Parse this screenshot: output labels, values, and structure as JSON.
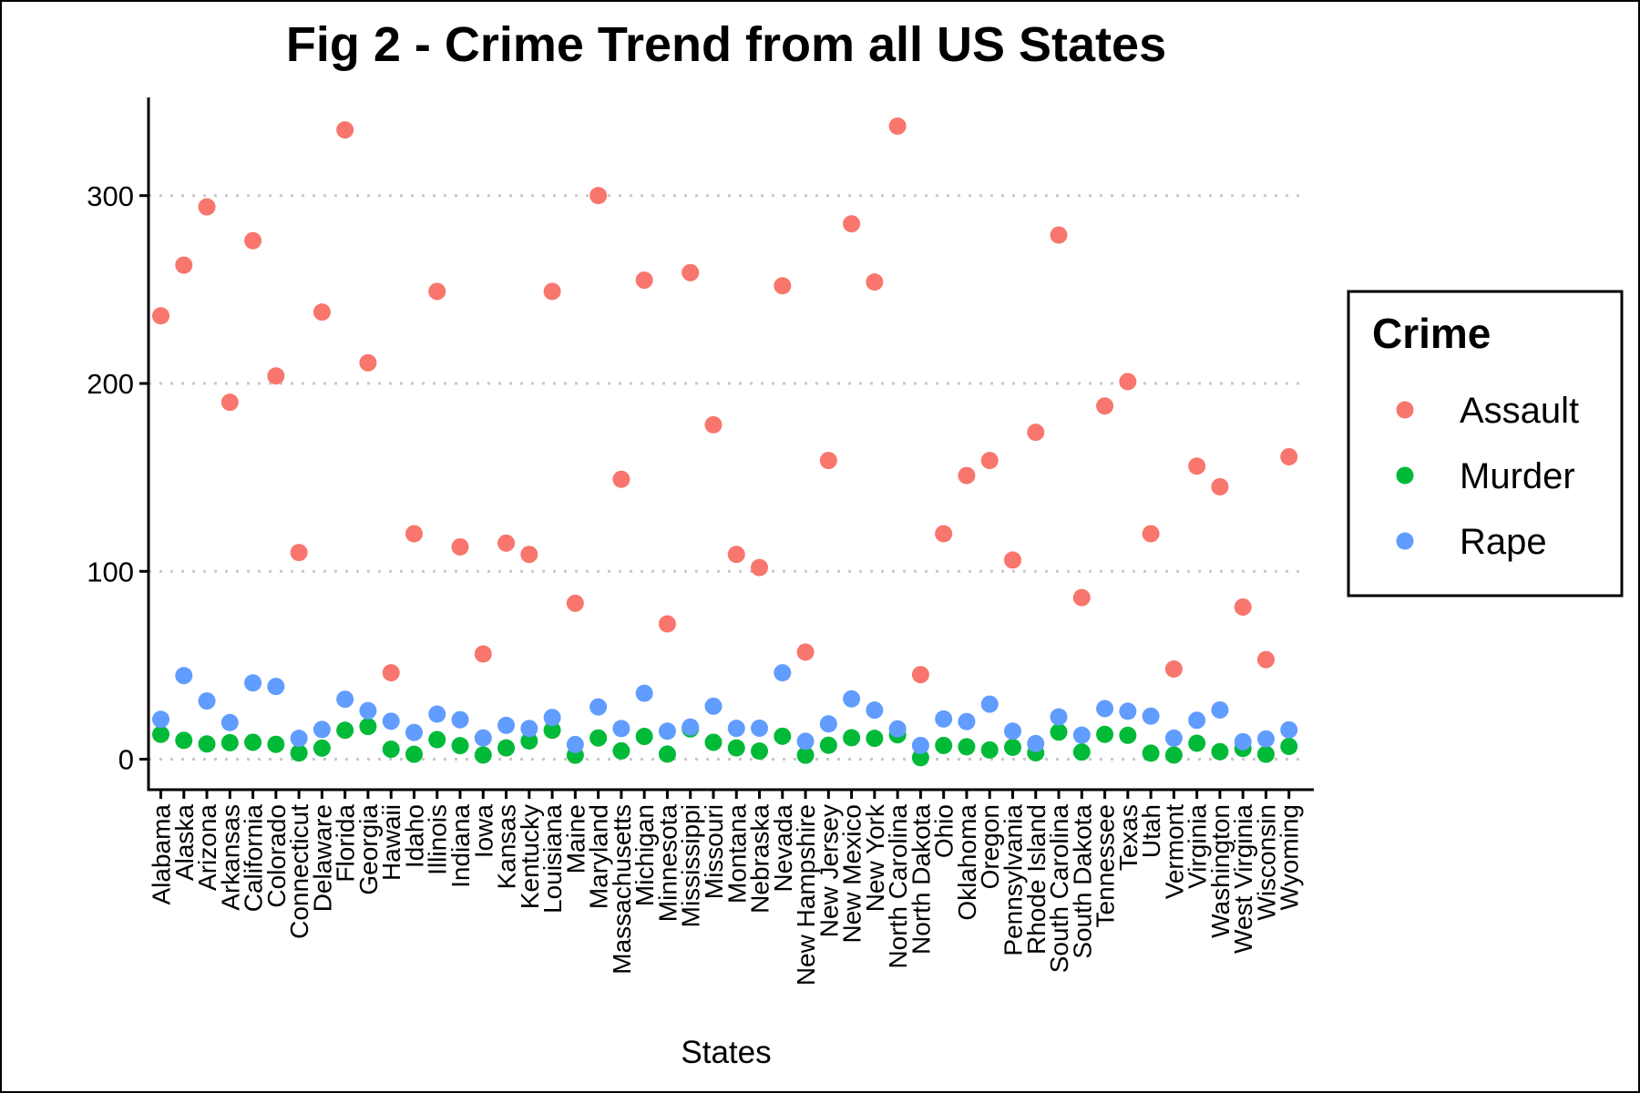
{
  "chart_data": {
    "type": "scatter",
    "title": "Fig 2 - Crime Trend from all US States",
    "xlabel": "States",
    "ylabel": "",
    "ylim": [
      -15,
      355
    ],
    "yticks": [
      0,
      100,
      200,
      300
    ],
    "grid": "horizontal dotted at y ticks",
    "legend": {
      "title": "Crime",
      "position": "right"
    },
    "categories": [
      "Alabama",
      "Alaska",
      "Arizona",
      "Arkansas",
      "California",
      "Colorado",
      "Connecticut",
      "Delaware",
      "Florida",
      "Georgia",
      "Hawaii",
      "Idaho",
      "Illinois",
      "Indiana",
      "Iowa",
      "Kansas",
      "Kentucky",
      "Louisiana",
      "Maine",
      "Maryland",
      "Massachusetts",
      "Michigan",
      "Minnesota",
      "Mississippi",
      "Missouri",
      "Montana",
      "Nebraska",
      "Nevada",
      "New Hampshire",
      "New Jersey",
      "New Mexico",
      "New York",
      "North Carolina",
      "North Dakota",
      "Ohio",
      "Oklahoma",
      "Oregon",
      "Pennsylvania",
      "Rhode Island",
      "South Carolina",
      "South Dakota",
      "Tennessee",
      "Texas",
      "Utah",
      "Vermont",
      "Virginia",
      "Washington",
      "West Virginia",
      "Wisconsin",
      "Wyoming"
    ],
    "series": [
      {
        "name": "Assault",
        "color": "#F8766D",
        "values": [
          236,
          263,
          294,
          190,
          276,
          204,
          110,
          238,
          335,
          211,
          46,
          120,
          249,
          113,
          56,
          115,
          109,
          249,
          83,
          300,
          149,
          255,
          72,
          259,
          178,
          109,
          102,
          252,
          57,
          159,
          285,
          254,
          337,
          45,
          120,
          151,
          159,
          106,
          174,
          279,
          86,
          188,
          201,
          120,
          48,
          156,
          145,
          81,
          53,
          161
        ]
      },
      {
        "name": "Murder",
        "color": "#00BA38",
        "values": [
          13.2,
          10,
          8.1,
          8.8,
          9,
          7.9,
          3.3,
          5.9,
          15.4,
          17.4,
          5.3,
          2.6,
          10.4,
          7.2,
          2.2,
          6,
          9.7,
          15.4,
          2.1,
          11.3,
          4.4,
          12.1,
          2.7,
          16.1,
          9,
          6,
          4.3,
          12.2,
          2.1,
          7.4,
          11.4,
          11.1,
          13,
          0.8,
          7.3,
          6.6,
          4.9,
          6.3,
          3.4,
          14.4,
          3.8,
          13.2,
          12.7,
          3.2,
          2.2,
          8.5,
          4,
          5.7,
          2.6,
          6.8
        ]
      },
      {
        "name": "Rape",
        "color": "#619CFF",
        "values": [
          21.2,
          44.5,
          31,
          19.5,
          40.6,
          38.7,
          11.1,
          15.8,
          31.9,
          25.8,
          20.2,
          14.2,
          24,
          21,
          11.3,
          18,
          16.3,
          22.2,
          7.8,
          27.8,
          16.3,
          35.1,
          14.9,
          17.1,
          28.2,
          16.4,
          16.5,
          46,
          9.5,
          18.8,
          32.1,
          26.1,
          16.1,
          7.3,
          21.4,
          20,
          29.3,
          14.9,
          8.3,
          22.5,
          12.8,
          26.9,
          25.5,
          22.9,
          11.2,
          20.7,
          26.2,
          9.3,
          10.8,
          15.6
        ]
      }
    ]
  }
}
